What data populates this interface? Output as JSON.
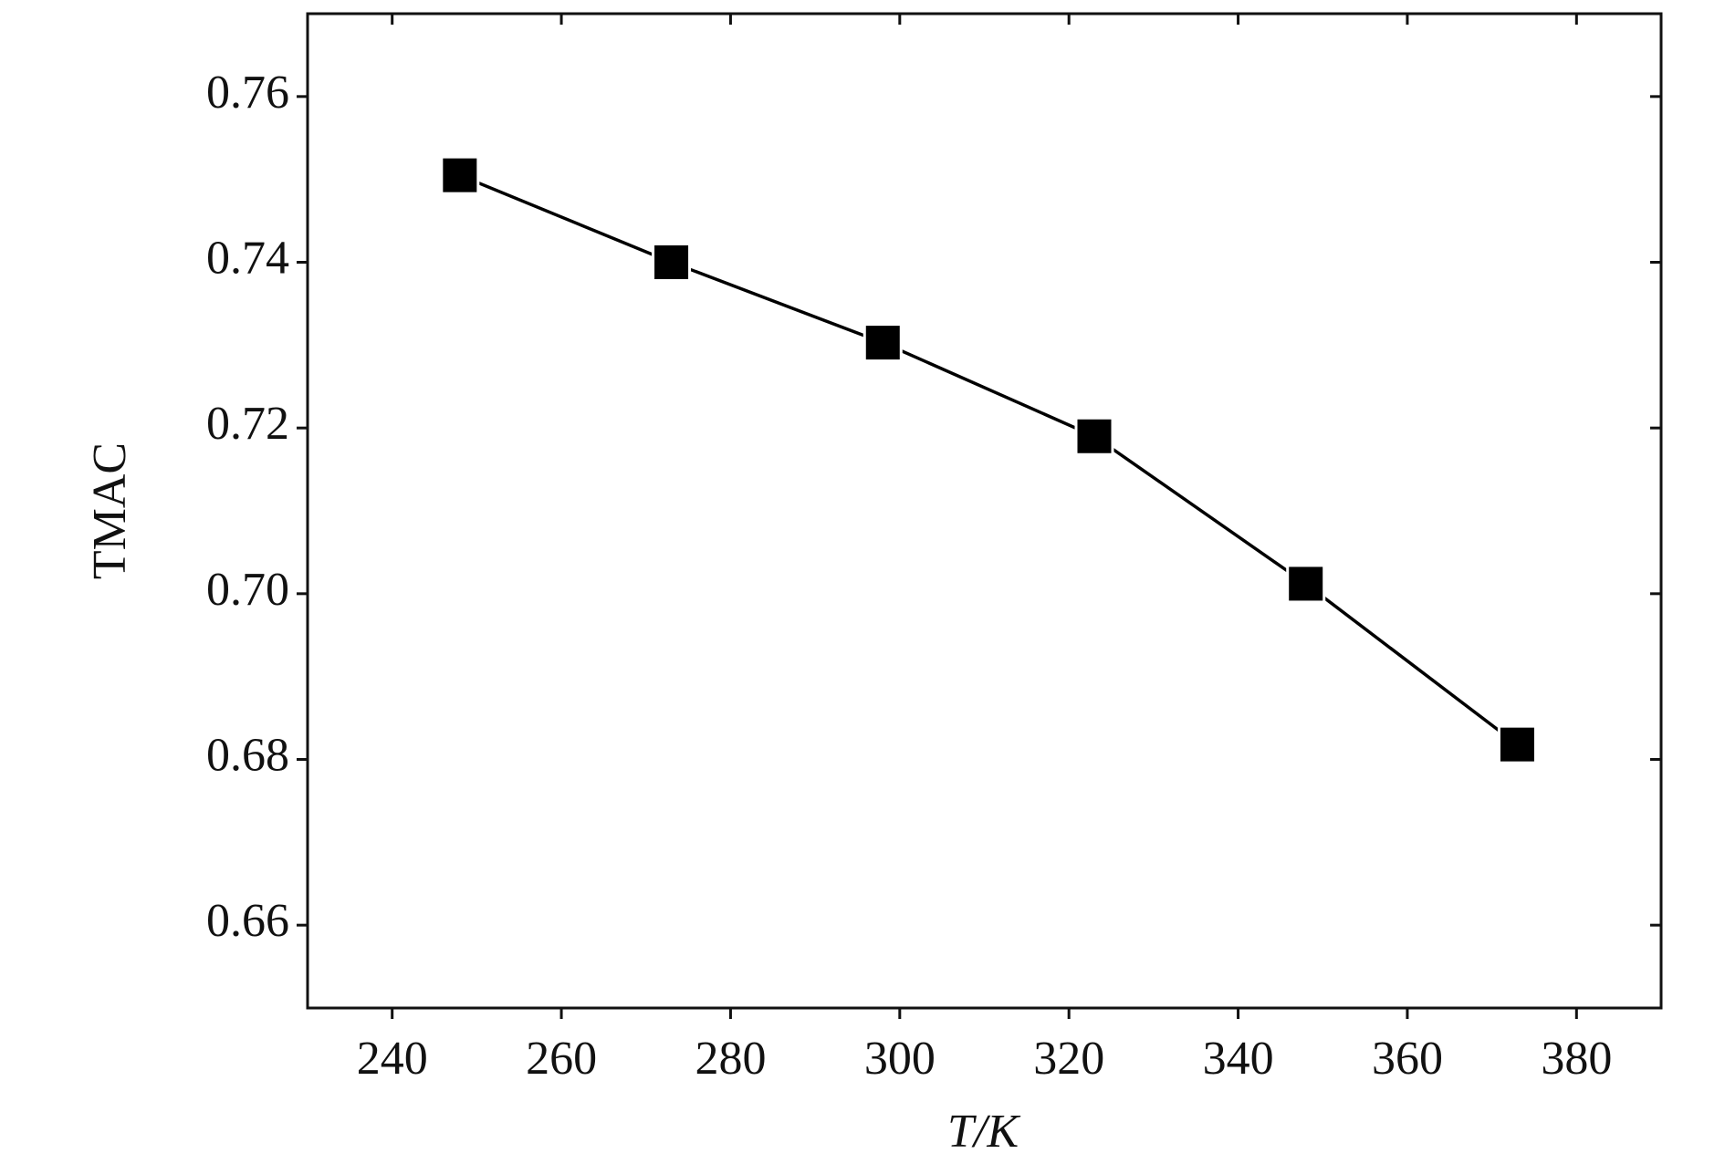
{
  "chart_data": {
    "type": "line",
    "x_label": "T/K",
    "y_label": "TMAC",
    "x": [
      248,
      273,
      298,
      323,
      348,
      373
    ],
    "series": [
      {
        "name": "TMAC",
        "color": "#000000",
        "values": [
          0.7505,
          0.74,
          0.7303,
          0.719,
          0.7012,
          0.6818
        ]
      }
    ],
    "xlim": [
      230,
      390
    ],
    "xticks": [
      240,
      260,
      280,
      300,
      320,
      340,
      360,
      380
    ],
    "ylim": [
      0.65,
      0.77
    ],
    "yticks": [
      0.66,
      0.68,
      {
        "value": 0.7,
        "label": "0.70"
      },
      0.72,
      0.74,
      0.76
    ],
    "grid": false,
    "marker": "square"
  }
}
